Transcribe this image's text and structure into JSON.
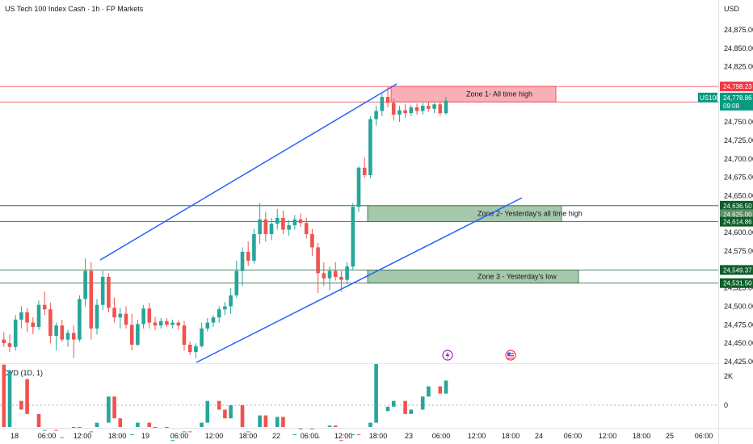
{
  "header": {
    "title": "US Tech 100 Index Cash · 1h · FP Markets"
  },
  "currency": "USD",
  "symbol": "US100",
  "price_tag": {
    "value": "24,778.86",
    "countdown": "09:08"
  },
  "indicator": {
    "label": "CVD (1D, 1)"
  },
  "colors": {
    "up": "#26a69a",
    "down": "#ef5350",
    "trend": "#2962ff",
    "resistance": "#f23645",
    "support": "#0e5e2a",
    "zone1": "#f7a1a9",
    "zone_green": "#8fb996"
  },
  "chart_data": {
    "type": "candlestick",
    "title": "US Tech 100 Index Cash · 1h · FP Markets",
    "x_ticks": [
      "18",
      "06:00",
      "12:00",
      "18:00",
      "19",
      "06:00",
      "12:00",
      "18:00",
      "22",
      "06:00",
      "12:00",
      "18:00",
      "23",
      "06:00",
      "12:00",
      "18:00",
      "24",
      "06:00",
      "12:00",
      "18:00",
      "25",
      "06:00"
    ],
    "y_ticks": [
      "24,875.00",
      "24,850.00",
      "24,825.00",
      "24,800.00",
      "24,775.00",
      "24,750.00",
      "24,725.00",
      "24,700.00",
      "24,675.00",
      "24,650.00",
      "24,625.00",
      "24,600.00",
      "24,575.00",
      "24,550.00",
      "24,525.00",
      "24,500.00",
      "24,475.00",
      "24,450.00",
      "24,425.00"
    ],
    "y_values": [
      24875,
      24850,
      24825,
      24800,
      24775,
      24750,
      24725,
      24700,
      24675,
      24650,
      24625,
      24600,
      24575,
      24550,
      24525,
      24500,
      24475,
      24450,
      24425
    ],
    "ylim": [
      24420,
      24895
    ],
    "levels": [
      {
        "label": "24,798.23",
        "value": 24798.23,
        "kind": "resistance"
      },
      {
        "label": "24,777.30",
        "value": 24777.3,
        "kind": "resistance"
      },
      {
        "label": "24,636.50",
        "value": 24636.5,
        "kind": "support"
      },
      {
        "label": "24,625.00",
        "value": 24625.0,
        "kind": "support-dim"
      },
      {
        "label": "24,614.86",
        "value": 24614.86,
        "kind": "support"
      },
      {
        "label": "24,549.37",
        "value": 24549.37,
        "kind": "support"
      },
      {
        "label": "24,531.50",
        "value": 24531.5,
        "kind": "support"
      }
    ],
    "zones": [
      {
        "label": "Zone 1- All time high",
        "top": 24798.23,
        "bottom": 24777.3,
        "kind": "zone1"
      },
      {
        "label": "Zone 2- Yesterday's all time high",
        "top": 24636.5,
        "bottom": 24614.86,
        "kind": "zone_green"
      },
      {
        "label": "Zone 3 - Yesterday's low",
        "top": 24549.37,
        "bottom": 24531.5,
        "kind": "zone_green"
      }
    ],
    "candles": [
      {
        "o": 24455,
        "h": 24465,
        "l": 24445,
        "c": 24450
      },
      {
        "o": 24450,
        "h": 24462,
        "l": 24438,
        "c": 24445
      },
      {
        "o": 24445,
        "h": 24488,
        "l": 24440,
        "c": 24482
      },
      {
        "o": 24482,
        "h": 24500,
        "l": 24470,
        "c": 24492
      },
      {
        "o": 24492,
        "h": 24498,
        "l": 24465,
        "c": 24478
      },
      {
        "o": 24478,
        "h": 24485,
        "l": 24462,
        "c": 24472
      },
      {
        "o": 24472,
        "h": 24508,
        "l": 24468,
        "c": 24502
      },
      {
        "o": 24502,
        "h": 24520,
        "l": 24488,
        "c": 24496
      },
      {
        "o": 24496,
        "h": 24505,
        "l": 24450,
        "c": 24460
      },
      {
        "o": 24460,
        "h": 24478,
        "l": 24440,
        "c": 24474
      },
      {
        "o": 24474,
        "h": 24482,
        "l": 24452,
        "c": 24455
      },
      {
        "o": 24455,
        "h": 24468,
        "l": 24445,
        "c": 24464
      },
      {
        "o": 24464,
        "h": 24474,
        "l": 24430,
        "c": 24455
      },
      {
        "o": 24455,
        "h": 24515,
        "l": 24452,
        "c": 24510
      },
      {
        "o": 24510,
        "h": 24565,
        "l": 24500,
        "c": 24548
      },
      {
        "o": 24548,
        "h": 24560,
        "l": 24455,
        "c": 24470
      },
      {
        "o": 24470,
        "h": 24510,
        "l": 24462,
        "c": 24502
      },
      {
        "o": 24502,
        "h": 24548,
        "l": 24495,
        "c": 24540
      },
      {
        "o": 24540,
        "h": 24545,
        "l": 24492,
        "c": 24498
      },
      {
        "o": 24498,
        "h": 24512,
        "l": 24478,
        "c": 24485
      },
      {
        "o": 24485,
        "h": 24498,
        "l": 24470,
        "c": 24490
      },
      {
        "o": 24490,
        "h": 24500,
        "l": 24470,
        "c": 24475
      },
      {
        "o": 24475,
        "h": 24490,
        "l": 24440,
        "c": 24448
      },
      {
        "o": 24448,
        "h": 24482,
        "l": 24446,
        "c": 24476
      },
      {
        "o": 24476,
        "h": 24502,
        "l": 24470,
        "c": 24497
      },
      {
        "o": 24497,
        "h": 24505,
        "l": 24470,
        "c": 24478
      },
      {
        "o": 24478,
        "h": 24486,
        "l": 24468,
        "c": 24474
      },
      {
        "o": 24474,
        "h": 24484,
        "l": 24470,
        "c": 24480
      },
      {
        "o": 24480,
        "h": 24484,
        "l": 24472,
        "c": 24475
      },
      {
        "o": 24475,
        "h": 24482,
        "l": 24470,
        "c": 24478
      },
      {
        "o": 24478,
        "h": 24481,
        "l": 24468,
        "c": 24474
      },
      {
        "o": 24474,
        "h": 24480,
        "l": 24440,
        "c": 24448
      },
      {
        "o": 24448,
        "h": 24452,
        "l": 24434,
        "c": 24438
      },
      {
        "o": 24438,
        "h": 24450,
        "l": 24430,
        "c": 24446
      },
      {
        "o": 24446,
        "h": 24478,
        "l": 24444,
        "c": 24470
      },
      {
        "o": 24470,
        "h": 24484,
        "l": 24466,
        "c": 24478
      },
      {
        "o": 24478,
        "h": 24488,
        "l": 24472,
        "c": 24485
      },
      {
        "o": 24485,
        "h": 24500,
        "l": 24478,
        "c": 24496
      },
      {
        "o": 24496,
        "h": 24506,
        "l": 24488,
        "c": 24500
      },
      {
        "o": 24500,
        "h": 24525,
        "l": 24490,
        "c": 24515
      },
      {
        "o": 24515,
        "h": 24562,
        "l": 24512,
        "c": 24548
      },
      {
        "o": 24548,
        "h": 24580,
        "l": 24528,
        "c": 24574
      },
      {
        "o": 24574,
        "h": 24588,
        "l": 24555,
        "c": 24562
      },
      {
        "o": 24562,
        "h": 24605,
        "l": 24558,
        "c": 24598
      },
      {
        "o": 24598,
        "h": 24640,
        "l": 24585,
        "c": 24618
      },
      {
        "o": 24618,
        "h": 24628,
        "l": 24588,
        "c": 24598
      },
      {
        "o": 24598,
        "h": 24620,
        "l": 24590,
        "c": 24612
      },
      {
        "o": 24612,
        "h": 24632,
        "l": 24604,
        "c": 24620
      },
      {
        "o": 24620,
        "h": 24630,
        "l": 24598,
        "c": 24604
      },
      {
        "o": 24604,
        "h": 24617,
        "l": 24596,
        "c": 24610
      },
      {
        "o": 24610,
        "h": 24624,
        "l": 24604,
        "c": 24618
      },
      {
        "o": 24618,
        "h": 24626,
        "l": 24608,
        "c": 24613
      },
      {
        "o": 24613,
        "h": 24620,
        "l": 24592,
        "c": 24598
      },
      {
        "o": 24598,
        "h": 24605,
        "l": 24568,
        "c": 24580
      },
      {
        "o": 24580,
        "h": 24586,
        "l": 24518,
        "c": 24545
      },
      {
        "o": 24545,
        "h": 24560,
        "l": 24528,
        "c": 24538
      },
      {
        "o": 24538,
        "h": 24554,
        "l": 24522,
        "c": 24548
      },
      {
        "o": 24548,
        "h": 24560,
        "l": 24535,
        "c": 24540
      },
      {
        "o": 24540,
        "h": 24548,
        "l": 24520,
        "c": 24536
      },
      {
        "o": 24536,
        "h": 24560,
        "l": 24530,
        "c": 24554
      },
      {
        "o": 24554,
        "h": 24640,
        "l": 24550,
        "c": 24635
      },
      {
        "o": 24635,
        "h": 24690,
        "l": 24628,
        "c": 24688
      },
      {
        "o": 24688,
        "h": 24702,
        "l": 24674,
        "c": 24678
      },
      {
        "o": 24678,
        "h": 24758,
        "l": 24674,
        "c": 24754
      },
      {
        "o": 24754,
        "h": 24772,
        "l": 24745,
        "c": 24765
      },
      {
        "o": 24765,
        "h": 24788,
        "l": 24758,
        "c": 24784
      },
      {
        "o": 24784,
        "h": 24798,
        "l": 24770,
        "c": 24776
      },
      {
        "o": 24776,
        "h": 24782,
        "l": 24752,
        "c": 24760
      },
      {
        "o": 24760,
        "h": 24772,
        "l": 24750,
        "c": 24766
      },
      {
        "o": 24766,
        "h": 24775,
        "l": 24756,
        "c": 24762
      },
      {
        "o": 24762,
        "h": 24773,
        "l": 24758,
        "c": 24770
      },
      {
        "o": 24770,
        "h": 24775,
        "l": 24760,
        "c": 24765
      },
      {
        "o": 24765,
        "h": 24776,
        "l": 24760,
        "c": 24772
      },
      {
        "o": 24772,
        "h": 24778,
        "l": 24764,
        "c": 24768
      },
      {
        "o": 24768,
        "h": 24776,
        "l": 24762,
        "c": 24774
      },
      {
        "o": 24774,
        "h": 24778,
        "l": 24758,
        "c": 24762
      },
      {
        "o": 24762,
        "h": 24784,
        "l": 24760,
        "c": 24779
      }
    ],
    "cvd": {
      "y_ticks": [
        "2K",
        "0"
      ],
      "y_values": [
        2000,
        0
      ],
      "ylim": [
        -2900,
        3600
      ],
      "bars": [
        {
          "o": 2800,
          "c": -1800
        },
        {
          "o": -1800,
          "c": 2400
        },
        {
          "o": 300,
          "c": -300
        },
        {
          "o": 1800,
          "c": -600
        },
        {
          "o": -600,
          "c": -2600
        },
        {
          "o": -2600,
          "c": -1700
        },
        {
          "o": -1700,
          "c": -2900
        },
        {
          "o": -2900,
          "c": -2200
        },
        {
          "o": -2200,
          "c": -1500
        },
        {
          "o": -1500,
          "c": -2900
        },
        {
          "o": -2900,
          "c": -1800
        },
        {
          "o": -1800,
          "c": -1200
        },
        {
          "o": -1200,
          "c": 600
        },
        {
          "o": 600,
          "c": -900
        },
        {
          "o": -900,
          "c": -2600
        },
        {
          "o": -2600,
          "c": -2000
        },
        {
          "o": -2000,
          "c": -1200
        },
        {
          "o": -1200,
          "c": -2200
        },
        {
          "o": -2200,
          "c": -1500
        },
        {
          "o": -1500,
          "c": -2900
        },
        {
          "o": -2900,
          "c": -2400
        },
        {
          "o": -2400,
          "c": -1800
        },
        {
          "o": -1800,
          "c": -2700
        },
        {
          "o": -2700,
          "c": -1200
        },
        {
          "o": -1200,
          "c": 300
        },
        {
          "o": 300,
          "c": -300
        },
        {
          "o": -300,
          "c": -900
        },
        {
          "o": -900,
          "c": 0
        },
        {
          "o": 0,
          "c": -1800
        },
        {
          "o": -1800,
          "c": -2600
        },
        {
          "o": -2600,
          "c": -700
        },
        {
          "o": -700,
          "c": -1600
        },
        {
          "o": -1600,
          "c": -800
        },
        {
          "o": -800,
          "c": -2600
        },
        {
          "o": -2600,
          "c": -2000
        },
        {
          "o": -2000,
          "c": -1600
        },
        {
          "o": -1600,
          "c": -2900
        },
        {
          "o": -2900,
          "c": -2200
        },
        {
          "o": -2200,
          "c": -1400
        },
        {
          "o": -1400,
          "c": -2400
        },
        {
          "o": -2400,
          "c": -2900
        },
        {
          "o": -2900,
          "c": -2000
        },
        {
          "o": -2000,
          "c": -2600
        },
        {
          "o": -2600,
          "c": -1200
        },
        {
          "o": -1200,
          "c": 3200
        },
        {
          "o": -400,
          "c": -100
        },
        {
          "o": -100,
          "c": 300
        },
        {
          "o": 300,
          "c": -600
        },
        {
          "o": -600,
          "c": -300
        },
        {
          "o": -300,
          "c": 600
        },
        {
          "o": 600,
          "c": 1300
        },
        {
          "o": 1300,
          "c": 800
        },
        {
          "o": 800,
          "c": 1700
        }
      ]
    }
  }
}
